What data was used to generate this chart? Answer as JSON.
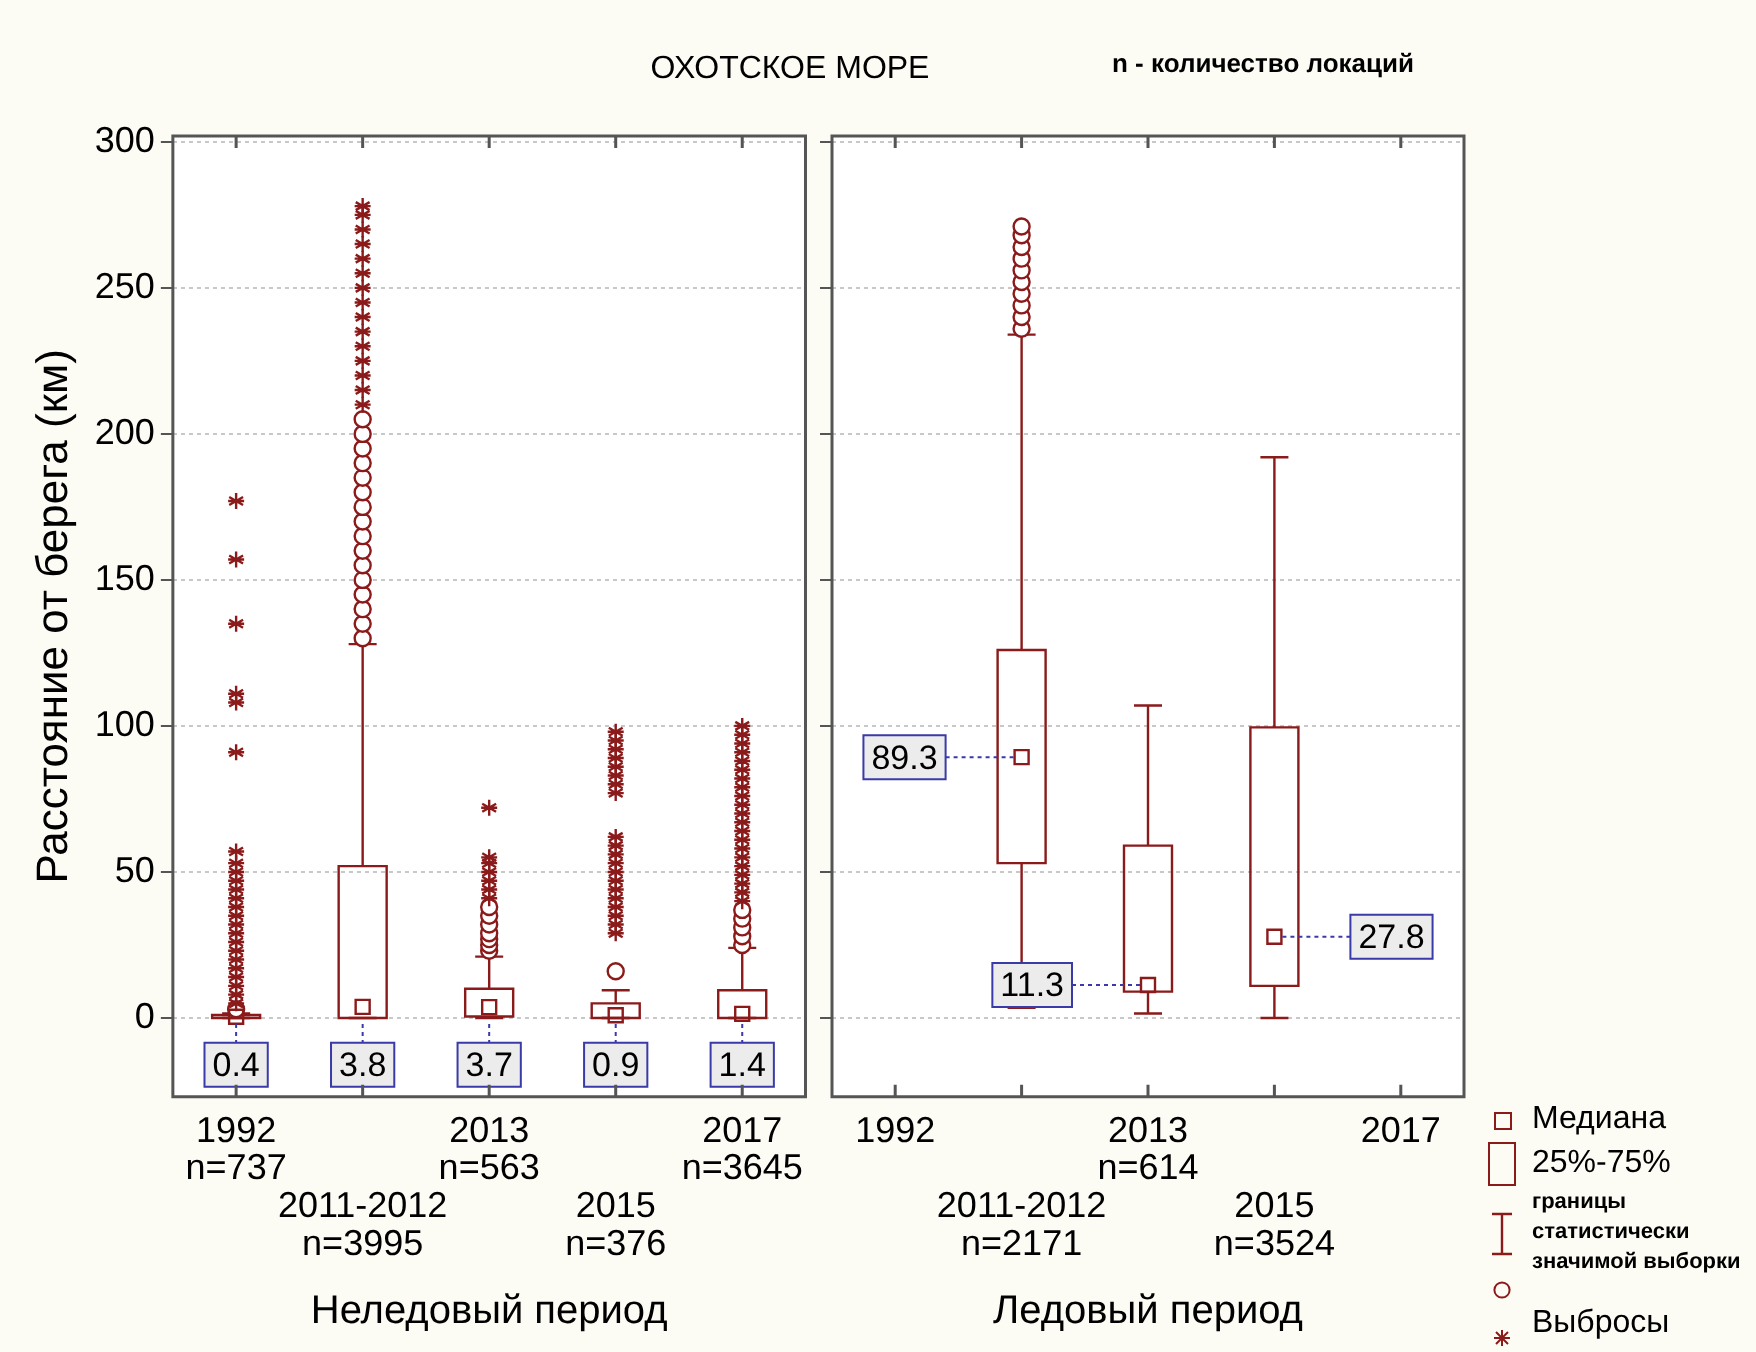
{
  "chart_data": [
    {
      "type": "box",
      "title": "ОХОТСКОЕ МОРЕ",
      "xlabel": "Неледовый период",
      "ylabel": "Расстояние от берега (км)",
      "categories": [
        "1992\nn=737",
        "2011-2012\nn=3995",
        "2013\nn=563",
        "2015\nn=376",
        "2017\nn=3645"
      ],
      "color": "#8b1a1a",
      "ylim": [
        -27,
        302
      ],
      "yticks": [
        0,
        50,
        100,
        150,
        200,
        250,
        300
      ],
      "grid": "y",
      "value_labels": [
        "0.4",
        "3.8",
        "3.7",
        "0.9",
        "1.4"
      ],
      "boxes": [
        {
          "low": 0,
          "q1": 0,
          "median": 0.4,
          "q3": 1,
          "high": 1.5,
          "outliers": [
            3,
            5,
            8,
            11,
            14,
            17,
            20,
            23,
            26,
            29,
            32,
            35,
            38,
            41,
            44,
            47,
            50,
            53,
            57,
            91,
            108,
            111,
            135,
            157,
            177
          ]
        },
        {
          "low": 0,
          "q1": 0,
          "median": 3.8,
          "q3": 52,
          "high": 128,
          "outliers": [
            130,
            135,
            140,
            145,
            150,
            155,
            160,
            165,
            170,
            175,
            180,
            185,
            190,
            195,
            200,
            205,
            210,
            215,
            220,
            225,
            230,
            235,
            240,
            245,
            250,
            255,
            260,
            265,
            270,
            275,
            278
          ]
        },
        {
          "low": 0,
          "q1": 0.5,
          "median": 3.7,
          "q3": 10,
          "high": 21,
          "outliers": [
            23,
            25,
            27,
            29,
            32,
            35,
            38,
            41,
            44,
            47,
            50,
            53,
            55,
            72
          ]
        },
        {
          "low": 0,
          "q1": 0,
          "median": 0.9,
          "q3": 5,
          "high": 9.5,
          "outliers": [
            16,
            29,
            32,
            35,
            38,
            41,
            44,
            47,
            50,
            53,
            56,
            59,
            62,
            77,
            80,
            83,
            86,
            89,
            92,
            95,
            98
          ]
        },
        {
          "low": 0,
          "q1": 0,
          "median": 1.4,
          "q3": 9.5,
          "high": 24,
          "outliers": [
            25,
            28,
            31,
            34,
            37,
            40,
            43,
            46,
            49,
            52,
            55,
            58,
            61,
            64,
            67,
            70,
            73,
            76,
            79,
            82,
            85,
            88,
            91,
            94,
            97,
            100
          ]
        }
      ]
    },
    {
      "type": "box",
      "xlabel": "Ледовый период",
      "categories": [
        "1992",
        "2011-2012\nn=2171",
        "2013\nn=614",
        "2015\nn=3524",
        "2017"
      ],
      "color": "#8b1a1a",
      "ylim": [
        -27,
        302
      ],
      "yticks": [
        0,
        50,
        100,
        150,
        200,
        250,
        300
      ],
      "grid": "y",
      "value_labels": [
        null,
        "89.3",
        "11.3",
        "27.8",
        null
      ],
      "tick_labels": "x",
      "boxes": [
        null,
        {
          "low": 3.5,
          "q1": 53,
          "median": 89.3,
          "q3": 126,
          "high": 234,
          "outliers": [
            236,
            240,
            244,
            248,
            252,
            256,
            260,
            264,
            268,
            271
          ]
        },
        {
          "low": 1.5,
          "q1": 9,
          "median": 11.3,
          "q3": 59,
          "high": 107
        },
        {
          "low": 0,
          "q1": 11,
          "median": 27.8,
          "q3": 99.5,
          "high": 192
        },
        null
      ],
      "annotations": [
        "n - количество локаций",
        "Медиана",
        "25%-75%",
        "границы\nстатистически\nзначимой выборки",
        "Выбросы"
      ]
    }
  ]
}
